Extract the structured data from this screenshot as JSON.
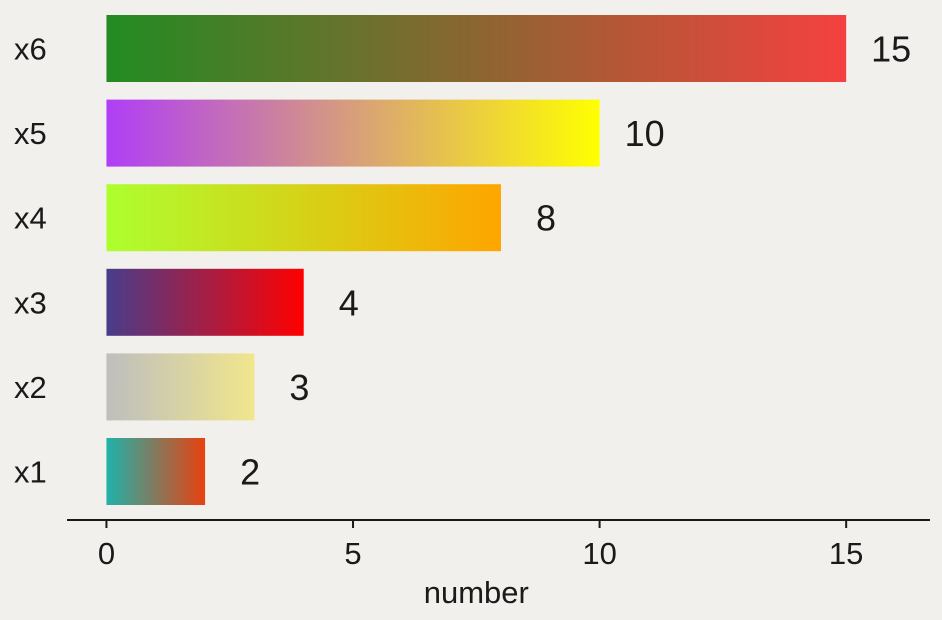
{
  "chart_data": {
    "type": "bar",
    "orientation": "horizontal",
    "categories": [
      "x1",
      "x2",
      "x3",
      "x4",
      "x5",
      "x6"
    ],
    "values": [
      2,
      3,
      4,
      8,
      10,
      15
    ],
    "xlabel": "number",
    "ylabel": "",
    "xlim": [
      -0.8,
      16.7
    ],
    "xticks": [
      0,
      5,
      10,
      15
    ],
    "grid": false,
    "data_labels": true,
    "bar_gradients": [
      {
        "from": "#20b2aa",
        "to": "#e8410f"
      },
      {
        "from": "#bebebe",
        "to": "#f0e68c"
      },
      {
        "from": "#483d8b",
        "to": "#ff0000"
      },
      {
        "from": "#adff2f",
        "to": "#ffa500"
      },
      {
        "from": "#b03ef6",
        "to": "#ffff00"
      },
      {
        "from": "#228b22",
        "to": "#f54040"
      }
    ],
    "colors": {
      "background": "#f2f0ed",
      "text": "#1a1a1a",
      "axis": "#1a1a1a"
    }
  }
}
